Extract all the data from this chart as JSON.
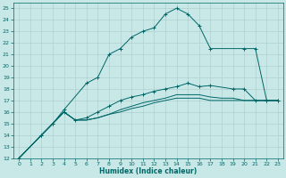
{
  "xlabel": "Humidex (Indice chaleur)",
  "bg_color": "#c8e8e8",
  "grid_color": "#b0d0d0",
  "line_color": "#006666",
  "xlim": [
    -0.5,
    23.5
  ],
  "ylim": [
    12,
    25.5
  ],
  "xticks": [
    0,
    1,
    2,
    3,
    4,
    5,
    6,
    7,
    8,
    9,
    10,
    11,
    12,
    13,
    14,
    15,
    16,
    17,
    18,
    19,
    20,
    21,
    22,
    23
  ],
  "yticks": [
    12,
    13,
    14,
    15,
    16,
    17,
    18,
    19,
    20,
    21,
    22,
    23,
    24,
    25
  ],
  "series": [
    {
      "x": [
        0,
        2,
        3,
        4,
        6,
        7,
        8,
        9,
        10,
        11,
        12,
        13,
        14,
        15,
        16,
        17,
        20,
        21,
        22,
        23
      ],
      "y": [
        12,
        14,
        15,
        16.2,
        18.5,
        19,
        21,
        21.5,
        22.5,
        23,
        23.3,
        24.5,
        25,
        24.5,
        23.5,
        21.5,
        21.5,
        21.5,
        17,
        17
      ],
      "marker": "+"
    },
    {
      "x": [
        0,
        2,
        3,
        4,
        5,
        6,
        7,
        8,
        9,
        10,
        11,
        12,
        13,
        14,
        15,
        16,
        17,
        19,
        20,
        21,
        22,
        23
      ],
      "y": [
        12,
        14,
        15,
        16,
        15.3,
        15.5,
        16,
        16.5,
        17,
        17.3,
        17.5,
        17.8,
        18,
        18.2,
        18.5,
        18.2,
        18.3,
        18,
        18,
        17,
        17,
        17
      ],
      "marker": "+"
    },
    {
      "x": [
        0,
        2,
        3,
        4,
        5,
        6,
        7,
        8,
        9,
        10,
        11,
        12,
        13,
        14,
        15,
        16,
        17,
        18,
        19,
        20,
        21,
        22,
        23
      ],
      "y": [
        12,
        14,
        15,
        16,
        15.3,
        15.3,
        15.5,
        15.8,
        16.2,
        16.5,
        16.8,
        17,
        17.2,
        17.5,
        17.5,
        17.5,
        17.3,
        17.2,
        17.2,
        17,
        17,
        17,
        17
      ],
      "marker": null
    },
    {
      "x": [
        0,
        2,
        3,
        4,
        5,
        6,
        7,
        8,
        9,
        10,
        11,
        12,
        13,
        14,
        15,
        16,
        17,
        18,
        19,
        20,
        21,
        22,
        23
      ],
      "y": [
        12,
        14,
        15,
        16,
        15.3,
        15.3,
        15.5,
        15.8,
        16,
        16.3,
        16.5,
        16.8,
        17,
        17.2,
        17.2,
        17.2,
        17,
        17,
        17,
        17,
        17,
        17,
        17
      ],
      "marker": null
    }
  ]
}
